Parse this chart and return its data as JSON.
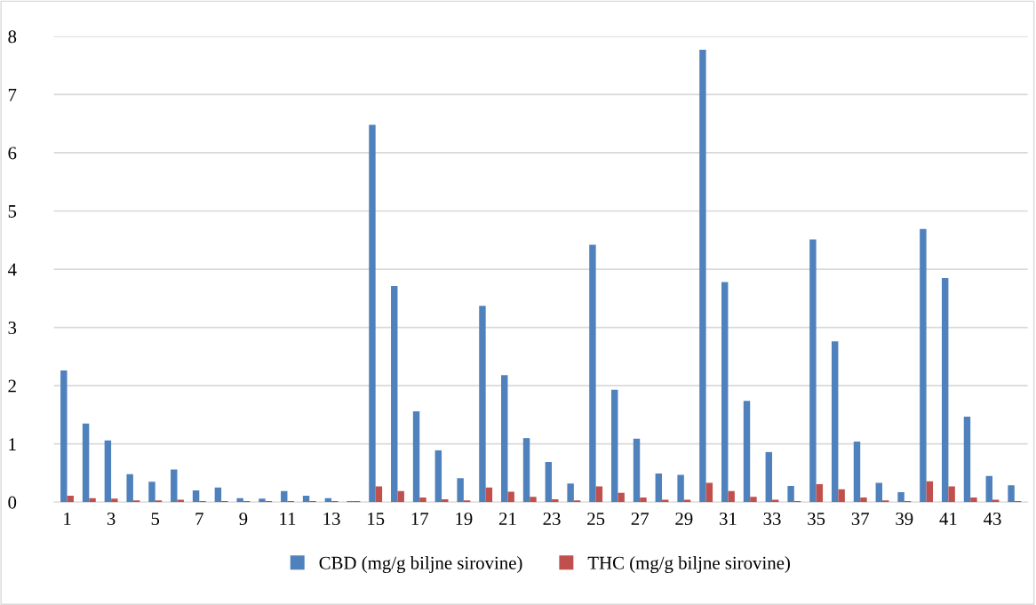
{
  "chart_data": {
    "type": "bar",
    "categories": [
      "1",
      null,
      "3",
      null,
      "5",
      null,
      "7",
      null,
      "9",
      null,
      "11",
      null,
      "13",
      null,
      "15",
      null,
      "17",
      null,
      "19",
      null,
      "21",
      null,
      "23",
      null,
      "25",
      null,
      "27",
      null,
      "29",
      null,
      "31",
      null,
      "33",
      null,
      "35",
      null,
      "37",
      null,
      "39",
      null,
      "41",
      null,
      "43",
      null
    ],
    "series": [
      {
        "name": "CBD (mg/g biljne sirovine)",
        "color": "#4f81bd",
        "values": [
          2.26,
          1.35,
          1.06,
          0.48,
          0.35,
          0.56,
          0.2,
          0.25,
          0.07,
          0.06,
          0.19,
          0.11,
          0.07,
          0.02,
          6.48,
          3.71,
          1.56,
          0.89,
          0.41,
          3.37,
          2.18,
          1.1,
          0.69,
          0.32,
          4.42,
          1.93,
          1.09,
          0.49,
          0.47,
          7.77,
          3.78,
          1.74,
          0.86,
          0.28,
          4.51,
          2.76,
          1.04,
          0.33,
          0.17,
          4.69,
          3.85,
          1.47,
          0.45,
          0.29
        ]
      },
      {
        "name": "THC (mg/g biljne sirovine)",
        "color": "#c0504d",
        "values": [
          0.11,
          0.07,
          0.06,
          0.03,
          0.03,
          0.04,
          0.02,
          0.02,
          0.02,
          0.02,
          0.02,
          0.02,
          0.02,
          0.02,
          0.27,
          0.19,
          0.08,
          0.05,
          0.03,
          0.25,
          0.18,
          0.09,
          0.05,
          0.03,
          0.27,
          0.16,
          0.08,
          0.04,
          0.04,
          0.33,
          0.19,
          0.09,
          0.04,
          0.02,
          0.31,
          0.22,
          0.08,
          0.03,
          0.02,
          0.36,
          0.27,
          0.08,
          0.04,
          0.02
        ]
      }
    ],
    "ylim": [
      0,
      8
    ],
    "yticks": [
      0,
      1,
      2,
      3,
      4,
      5,
      6,
      7,
      8
    ],
    "grid": "y",
    "legend": "bottom"
  }
}
